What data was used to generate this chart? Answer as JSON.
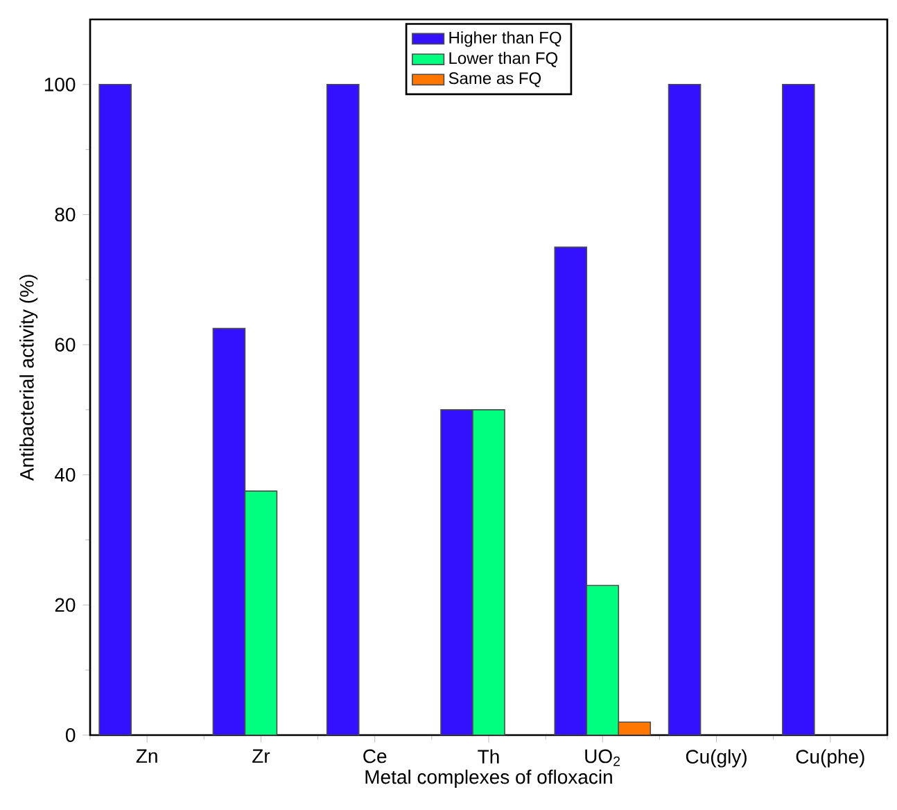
{
  "chart_data": {
    "type": "bar",
    "xlabel": "Metal complexes of ofloxacin",
    "ylabel": "Antibacterial activity (%)",
    "categories": [
      "Zn",
      "Zr",
      "Ce",
      "Th",
      "UO$_{2}$",
      "Cu(gly)",
      "Cu(phe)"
    ],
    "series": [
      {
        "name": "Higher than FQ",
        "color": "#3311ff",
        "values": [
          100,
          62.5,
          100,
          50,
          75,
          100,
          100
        ]
      },
      {
        "name": "Lower than FQ",
        "color": "#00ff7f",
        "values": [
          null,
          37.5,
          null,
          50,
          23,
          null,
          null
        ]
      },
      {
        "name": "Same as FQ",
        "color": "#ff7700",
        "values": [
          null,
          null,
          null,
          null,
          2,
          null,
          null
        ]
      }
    ],
    "ylim": [
      0,
      110
    ],
    "yticks": [
      0,
      20,
      40,
      60,
      80,
      100
    ],
    "legend": "top"
  }
}
